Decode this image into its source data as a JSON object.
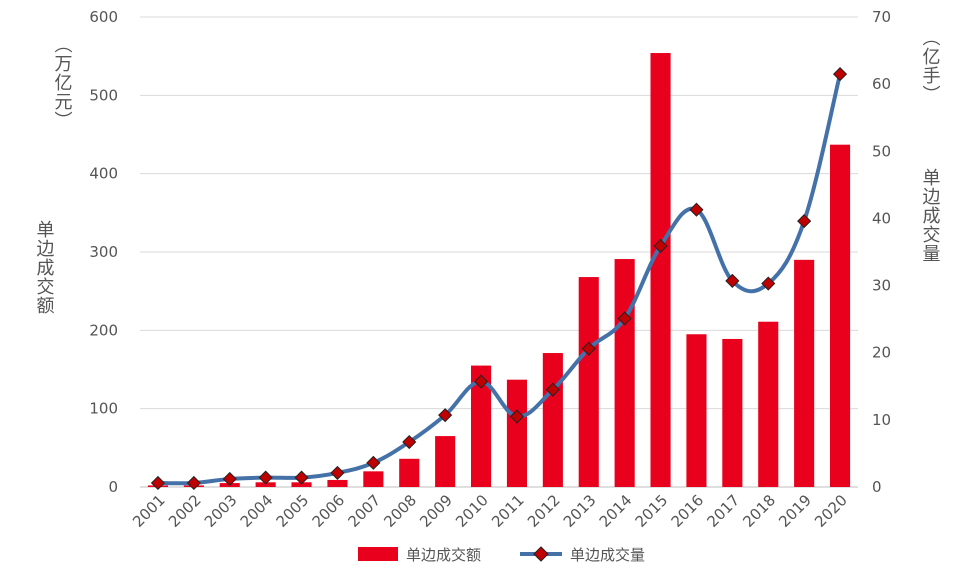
{
  "chart_data": {
    "type": "bar+line",
    "categories": [
      "2001",
      "2002",
      "2003",
      "2004",
      "2005",
      "2006",
      "2007",
      "2008",
      "2009",
      "2010",
      "2011",
      "2012",
      "2013",
      "2014",
      "2015",
      "2016",
      "2017",
      "2018",
      "2019",
      "2020"
    ],
    "series": [
      {
        "name": "单边成交额",
        "type": "bar",
        "axis": "left",
        "color": "#e8001c",
        "values": [
          2,
          2,
          5,
          6,
          6,
          9,
          20,
          36,
          65,
          155,
          137,
          171,
          268,
          291,
          554,
          195,
          189,
          211,
          290,
          437
        ]
      },
      {
        "name": "单边成交量",
        "type": "line",
        "axis": "right",
        "color": "#4472a8",
        "marker_color": "#c00000",
        "values": [
          0.6,
          0.6,
          1.2,
          1.4,
          1.4,
          2.1,
          3.6,
          6.7,
          10.7,
          15.7,
          10.5,
          14.5,
          20.6,
          25.1,
          35.9,
          41.3,
          30.7,
          30.3,
          39.6,
          61.5
        ]
      }
    ],
    "y_left": {
      "label_unit": "（万亿元）",
      "label_name": "单边成交额",
      "ylim": [
        0,
        600
      ],
      "ticks": [
        "0",
        "100",
        "200",
        "300",
        "400",
        "500",
        "600"
      ]
    },
    "y_right": {
      "label_unit": "（亿手）",
      "label_name": "单边成交量",
      "ylim": [
        0,
        70
      ],
      "ticks": [
        "0",
        "10",
        "20",
        "30",
        "40",
        "50",
        "60",
        "70"
      ]
    },
    "grid": true,
    "legend": "bottom",
    "title": ""
  }
}
